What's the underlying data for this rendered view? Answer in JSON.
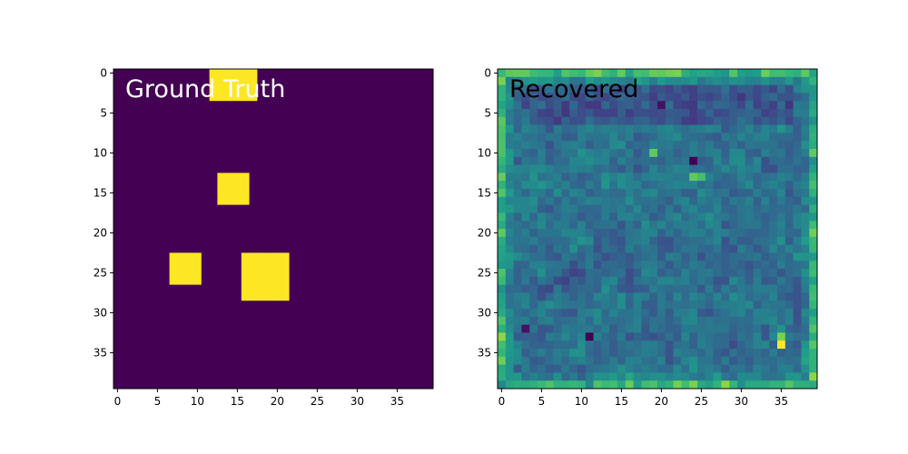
{
  "chart_data": [
    {
      "type": "heatmap",
      "title": "",
      "annotation": "Ground Truth",
      "annotation_color": "#ffffff",
      "xlabel": "",
      "ylabel": "",
      "grid_size": [
        40,
        40
      ],
      "xlim": [
        -0.5,
        39.5
      ],
      "ylim": [
        39.5,
        -0.5
      ],
      "x_ticks": [
        0,
        5,
        10,
        15,
        20,
        25,
        30,
        35
      ],
      "y_ticks": [
        0,
        5,
        10,
        15,
        20,
        25,
        30,
        35
      ],
      "background_value": 0,
      "colormap": "viridis",
      "blocks": [
        {
          "rows": [
            0,
            3
          ],
          "cols": [
            12,
            17
          ],
          "value": 1
        },
        {
          "rows": [
            13,
            16
          ],
          "cols": [
            13,
            16
          ],
          "value": 1
        },
        {
          "rows": [
            23,
            26
          ],
          "cols": [
            7,
            10
          ],
          "value": 1
        },
        {
          "rows": [
            23,
            28
          ],
          "cols": [
            16,
            21
          ],
          "value": 1
        }
      ]
    },
    {
      "type": "heatmap",
      "title": "",
      "annotation": "Recovered",
      "annotation_color": "#000000",
      "xlabel": "",
      "ylabel": "",
      "grid_size": [
        40,
        40
      ],
      "xlim": [
        -0.5,
        39.5
      ],
      "ylim": [
        39.5,
        -0.5
      ],
      "x_ticks": [
        0,
        5,
        10,
        15,
        20,
        25,
        30,
        35
      ],
      "y_ticks": [
        0,
        5,
        10,
        15,
        20,
        25,
        30,
        35
      ],
      "colormap": "viridis",
      "value_range": [
        0,
        1
      ],
      "description_values": "noisy field mostly 0.15-0.55; edges brighter; peak near row 34, col 35",
      "peaks": [
        {
          "row": 34,
          "col": 35,
          "value": 1.0
        },
        {
          "row": 33,
          "col": 35,
          "value": 0.8
        },
        {
          "row": 10,
          "col": 19,
          "value": 0.75
        },
        {
          "row": 13,
          "col": 24,
          "value": 0.75
        },
        {
          "row": 13,
          "col": 25,
          "value": 0.7
        }
      ],
      "troughs": [
        {
          "row": 11,
          "col": 24,
          "value": 0.0
        },
        {
          "row": 33,
          "col": 11,
          "value": 0.0
        },
        {
          "row": 32,
          "col": 3,
          "value": 0.05
        },
        {
          "row": 4,
          "col": 20,
          "value": 0.05
        }
      ]
    }
  ],
  "colors": {
    "viridis_low": "#440154",
    "viridis_high": "#fde725"
  }
}
